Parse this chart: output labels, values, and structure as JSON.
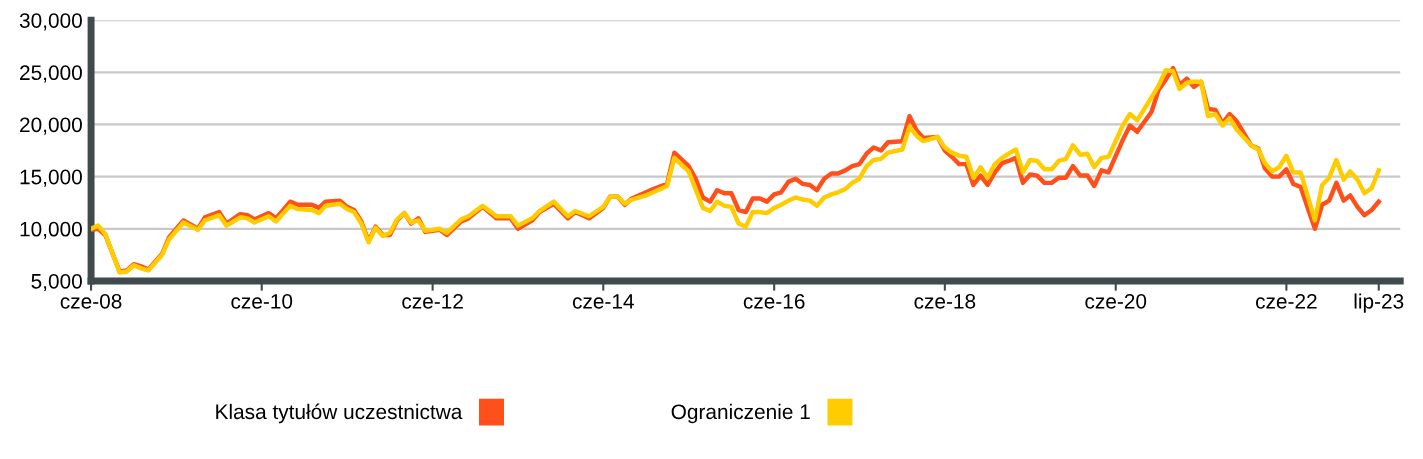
{
  "chart_data": {
    "type": "line",
    "x": [
      "2008-06",
      "2008-07",
      "2008-08",
      "2008-10",
      "2008-11",
      "2008-12",
      "2009-01",
      "2009-02",
      "2009-04",
      "2009-05",
      "2009-07",
      "2009-09",
      "2009-10",
      "2009-12",
      "2010-01",
      "2010-03",
      "2010-04",
      "2010-05",
      "2010-07",
      "2010-08",
      "2010-10",
      "2010-11",
      "2011-01",
      "2011-02",
      "2011-03",
      "2011-05",
      "2011-06",
      "2011-07",
      "2011-08",
      "2011-09",
      "2011-10",
      "2011-11",
      "2011-12",
      "2012-01",
      "2012-02",
      "2012-03",
      "2012-04",
      "2012-05",
      "2012-07",
      "2012-08",
      "2012-10",
      "2012-11",
      "2013-01",
      "2013-03",
      "2013-05",
      "2013-06",
      "2013-08",
      "2013-09",
      "2013-11",
      "2014-01",
      "2014-02",
      "2014-04",
      "2014-06",
      "2014-07",
      "2014-08",
      "2014-09",
      "2014-10",
      "2014-12",
      "2015-01",
      "2015-03",
      "2015-04",
      "2015-06",
      "2015-07",
      "2015-08",
      "2015-09",
      "2015-10",
      "2015-11",
      "2015-12",
      "2016-01",
      "2016-02",
      "2016-03",
      "2016-04",
      "2016-05",
      "2016-06",
      "2016-07",
      "2016-08",
      "2016-09",
      "2016-10",
      "2016-11",
      "2016-12",
      "2017-01",
      "2017-02",
      "2017-03",
      "2017-04",
      "2017-05",
      "2017-06",
      "2017-07",
      "2017-08",
      "2017-09",
      "2017-10",
      "2017-12",
      "2018-01",
      "2018-02",
      "2018-03",
      "2018-05",
      "2018-06",
      "2018-07",
      "2018-08",
      "2018-09",
      "2018-10",
      "2018-11",
      "2018-12",
      "2019-01",
      "2019-02",
      "2019-03",
      "2019-04",
      "2019-05",
      "2019-06",
      "2019-07",
      "2019-08",
      "2019-09",
      "2019-10",
      "2019-11",
      "2019-12",
      "2020-01",
      "2020-02",
      "2020-03",
      "2020-04",
      "2020-05",
      "2020-07",
      "2020-08",
      "2020-09",
      "2020-11",
      "2020-12",
      "2021-01",
      "2021-02",
      "2021-03",
      "2021-04",
      "2021-05",
      "2021-06",
      "2021-07",
      "2021-08",
      "2021-09",
      "2021-10",
      "2021-11",
      "2022-01",
      "2022-02",
      "2022-03",
      "2022-04",
      "2022-05",
      "2022-06",
      "2022-07",
      "2022-08",
      "2022-10",
      "2022-11",
      "2022-12",
      "2023-01",
      "2023-02",
      "2023-03",
      "2023-04",
      "2023-05",
      "2023-06",
      "2023-07"
    ],
    "series": [
      {
        "name": "Klasa tytułów uczestnictwa",
        "color": "#ff4f1a",
        "values": [
          9900,
          10000,
          9400,
          5900,
          6000,
          6600,
          6400,
          6100,
          7600,
          9200,
          10800,
          10000,
          11100,
          11600,
          10500,
          11400,
          11300,
          10900,
          11500,
          11000,
          12600,
          12300,
          12300,
          12000,
          12600,
          12700,
          12100,
          11800,
          10700,
          8800,
          10200,
          9400,
          9400,
          10800,
          11500,
          10500,
          11000,
          9700,
          9900,
          9400,
          10700,
          11000,
          12100,
          11000,
          11000,
          10000,
          10800,
          11600,
          12400,
          11000,
          11600,
          11000,
          12000,
          13100,
          13100,
          12300,
          12900,
          13500,
          13800,
          14300,
          17300,
          16000,
          14800,
          13000,
          12600,
          13700,
          13400,
          13400,
          11800,
          11600,
          12900,
          12900,
          12600,
          13300,
          13500,
          14500,
          14800,
          14300,
          14200,
          13700,
          14800,
          15300,
          15300,
          15600,
          16000,
          16200,
          17200,
          17800,
          17500,
          18300,
          18400,
          20800,
          19400,
          18700,
          18800,
          17500,
          16900,
          16200,
          16200,
          14200,
          15100,
          14200,
          15400,
          16300,
          16500,
          16800,
          14400,
          15200,
          15100,
          14400,
          14400,
          14900,
          14900,
          16000,
          15100,
          15100,
          14100,
          15600,
          15400,
          18500,
          19900,
          19300,
          21200,
          23300,
          24300,
          25400,
          23800,
          24400,
          23600,
          24100,
          21500,
          21400,
          20100,
          21000,
          20300,
          18000,
          17700,
          15800,
          15000,
          15000,
          15700,
          14300,
          14000,
          10000,
          12300,
          12700,
          14400,
          12700,
          13200,
          12100,
          11300,
          11800,
          12600
        ]
      },
      {
        "name": "Ograniczenie 1",
        "color": "#ffcc00",
        "values": [
          10000,
          10300,
          9500,
          5800,
          5900,
          6500,
          6200,
          6000,
          7500,
          9000,
          10600,
          9900,
          10800,
          11300,
          10300,
          11100,
          11000,
          10600,
          11200,
          10700,
          12200,
          11900,
          11800,
          11500,
          12200,
          12400,
          11900,
          11600,
          10500,
          8700,
          10100,
          9300,
          9600,
          10900,
          11500,
          10600,
          10800,
          9800,
          10000,
          9600,
          10900,
          11200,
          12200,
          11200,
          11200,
          10300,
          11000,
          11700,
          12600,
          11200,
          11700,
          11200,
          12100,
          13100,
          13100,
          12400,
          12800,
          13200,
          13500,
          14100,
          16800,
          15500,
          13800,
          12000,
          11700,
          12600,
          12200,
          12100,
          10500,
          10200,
          11600,
          11600,
          11500,
          12000,
          12300,
          12700,
          13000,
          12800,
          12700,
          12200,
          13000,
          13300,
          13500,
          13800,
          14400,
          14800,
          16000,
          16600,
          16700,
          17300,
          17600,
          19800,
          18900,
          18400,
          18800,
          17800,
          17300,
          17000,
          16900,
          14900,
          15900,
          14900,
          16200,
          16800,
          17200,
          17600,
          15400,
          16600,
          16500,
          15700,
          15700,
          16500,
          16700,
          18000,
          17100,
          17200,
          15900,
          16800,
          16900,
          19900,
          21000,
          20400,
          22600,
          23700,
          25200,
          25100,
          23400,
          24000,
          24100,
          24100,
          20800,
          21000,
          19900,
          20600,
          19500,
          18000,
          17600,
          16300,
          15500,
          15900,
          17000,
          15400,
          15400,
          10800,
          14200,
          14900,
          16600,
          14700,
          15500,
          14700,
          13400,
          13900,
          15600
        ]
      }
    ],
    "xlim": [
      "2008-06",
      "2023-10"
    ],
    "xticks": [
      {
        "value": "2008-06",
        "label": "cze-08"
      },
      {
        "value": "2010-06",
        "label": "cze-10"
      },
      {
        "value": "2012-06",
        "label": "cze-12"
      },
      {
        "value": "2014-06",
        "label": "cze-14"
      },
      {
        "value": "2016-06",
        "label": "cze-16"
      },
      {
        "value": "2018-06",
        "label": "cze-18"
      },
      {
        "value": "2020-06",
        "label": "cze-20"
      },
      {
        "value": "2022-06",
        "label": "cze-22"
      },
      {
        "value": "2023-07",
        "label": "lip-23"
      }
    ],
    "ylim": [
      5000,
      30000
    ],
    "yticks": [
      {
        "value": 5000,
        "label": "5,000"
      },
      {
        "value": 10000,
        "label": "10,000"
      },
      {
        "value": 15000,
        "label": "15,000"
      },
      {
        "value": 20000,
        "label": "20,000"
      },
      {
        "value": 25000,
        "label": "25,000"
      },
      {
        "value": 30000,
        "label": "30,000"
      }
    ],
    "grid": "y",
    "legend": "bottom",
    "marker": "none",
    "line_style": "solid"
  }
}
